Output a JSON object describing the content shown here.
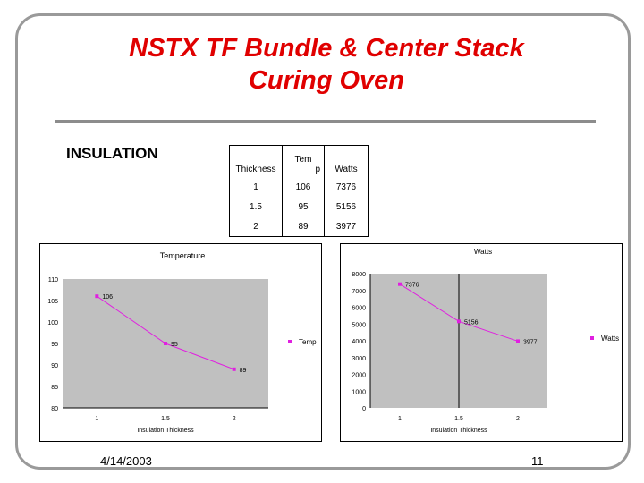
{
  "slide": {
    "title_line1": "NSTX TF Bundle & Center Stack",
    "title_line2": "Curing Oven",
    "section_label": "INSULATION",
    "date": "4/14/2003",
    "page_number": "11"
  },
  "table": {
    "headers": [
      "Thickness",
      "Tem p",
      "Watts"
    ],
    "header_temp_line1": "Tem",
    "header_temp_line2": "p",
    "rows": [
      [
        "1",
        "106",
        "7376"
      ],
      [
        "1.5",
        "95",
        "5156"
      ],
      [
        "2",
        "89",
        "3977"
      ]
    ]
  },
  "colors": {
    "title": "#e00000",
    "series": "#e020e0",
    "plot_area": "#c0c0c0"
  },
  "chart_data": [
    {
      "type": "line",
      "title": "Temperature",
      "xlabel": "Insulation Thickness",
      "ylabel": "",
      "categories": [
        "1",
        "1.5",
        "2"
      ],
      "x": [
        1,
        1.5,
        2
      ],
      "series": [
        {
          "name": "Temp",
          "values": [
            106,
            95,
            89
          ]
        }
      ],
      "ylim": [
        80,
        110
      ],
      "yticks": [
        "110",
        "105",
        "100",
        "95",
        "90",
        "85",
        "80"
      ],
      "data_labels": [
        "106",
        "95",
        "89"
      ],
      "legend": "right",
      "grid": false
    },
    {
      "type": "line",
      "title": "Watts",
      "xlabel": "Insulation Thickness",
      "ylabel": "",
      "categories": [
        "1",
        "1.5",
        "2"
      ],
      "x": [
        1,
        1.5,
        2
      ],
      "series": [
        {
          "name": "Watts",
          "values": [
            7376,
            5156,
            3977
          ]
        }
      ],
      "ylim": [
        0,
        8000
      ],
      "yticks": [
        "8000",
        "7000",
        "6000",
        "5000",
        "4000",
        "3000",
        "2000",
        "1000",
        "0"
      ],
      "data_labels": [
        "7376",
        "5156",
        "3977"
      ],
      "legend": "right",
      "grid": false
    }
  ]
}
